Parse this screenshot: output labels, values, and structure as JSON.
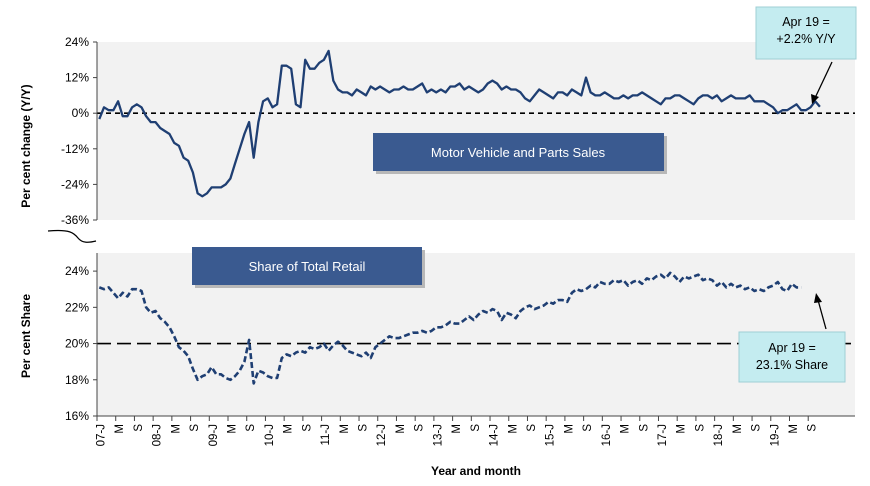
{
  "chart_data": [
    {
      "type": "line",
      "title": "Motor Vehicle and Parts Sales",
      "ylabel": "Per cent change (Y/Y)",
      "ylim": [
        -36,
        24
      ],
      "yticks": [
        "24%",
        "12%",
        "0%",
        "-12%",
        "-24%",
        "-36%"
      ],
      "ytick_values": [
        24,
        12,
        0,
        -12,
        -24,
        -36
      ],
      "reference_line": 0,
      "series": [
        {
          "values": [
            -2,
            2,
            1,
            1,
            4,
            -1,
            -1,
            2,
            3,
            2,
            -1,
            -3,
            -3,
            -5,
            -6,
            -7,
            -10,
            -11,
            -15,
            -16,
            -20,
            -27,
            -28,
            -27,
            -25,
            -25,
            -25,
            -24,
            -22,
            -17,
            -12,
            -7,
            -3,
            -15,
            -3,
            4,
            5,
            2,
            3,
            16,
            16,
            15,
            3,
            2,
            18,
            15,
            15,
            17,
            18,
            21,
            11,
            8,
            7,
            7,
            6,
            8,
            7,
            6,
            9,
            8,
            9,
            8,
            7,
            8,
            8,
            9,
            8,
            8,
            9,
            10,
            7,
            8,
            7,
            8,
            7,
            9,
            9,
            10,
            8,
            9,
            8,
            7,
            8,
            10,
            11,
            10,
            8,
            9,
            8,
            8,
            7,
            5,
            4,
            6,
            8,
            7,
            6,
            5,
            7,
            7,
            6,
            8,
            7,
            6,
            12,
            7,
            6,
            6,
            7,
            6,
            5,
            5,
            6,
            5,
            6,
            6,
            7,
            6,
            5,
            4,
            3,
            5,
            5,
            6,
            6,
            5,
            4,
            3,
            5,
            6,
            6,
            5,
            6,
            4,
            5,
            6,
            5,
            5,
            5,
            6,
            4,
            4,
            4,
            3,
            2,
            0,
            1,
            1,
            2,
            3,
            1,
            1,
            2,
            4,
            2.2
          ]
        }
      ],
      "annotation": "Apr 19 =\n+2.2% Y/Y"
    },
    {
      "type": "line",
      "title": "Share of Total Retail",
      "ylabel": "Per cent Share",
      "ylim": [
        16,
        25
      ],
      "yticks": [
        "24%",
        "22%",
        "20%",
        "18%",
        "16%"
      ],
      "ytick_values": [
        24,
        22,
        20,
        18,
        16
      ],
      "reference_line": 20,
      "series": [
        {
          "values": [
            23.1,
            23.0,
            23.1,
            22.8,
            22.5,
            22.8,
            22.6,
            23.0,
            23.0,
            22.9,
            22.0,
            21.7,
            21.8,
            21.4,
            21.2,
            20.9,
            20.4,
            19.8,
            19.6,
            19.3,
            18.6,
            18.0,
            18.2,
            18.3,
            18.7,
            18.3,
            18.3,
            18.1,
            18.0,
            18.2,
            18.5,
            19.0,
            20.2,
            17.8,
            18.5,
            18.4,
            18.2,
            18.1,
            18.1,
            19.2,
            19.4,
            19.3,
            19.5,
            19.6,
            19.5,
            19.8,
            19.7,
            19.8,
            20.0,
            19.6,
            19.9,
            20.1,
            19.9,
            19.6,
            19.5,
            19.4,
            19.3,
            19.5,
            19.2,
            19.8,
            20.0,
            20.2,
            20.4,
            20.3,
            20.3,
            20.4,
            20.5,
            20.6,
            20.6,
            20.7,
            20.6,
            20.7,
            20.9,
            20.9,
            21.0,
            21.2,
            21.1,
            21.1,
            21.3,
            21.5,
            21.3,
            21.6,
            21.8,
            21.7,
            21.9,
            21.8,
            21.3,
            21.7,
            21.6,
            21.4,
            21.8,
            22.0,
            22.1,
            21.9,
            22.0,
            22.1,
            22.3,
            22.2,
            22.4,
            22.4,
            22.3,
            22.8,
            23.0,
            22.9,
            23.0,
            23.2,
            23.1,
            23.4,
            23.3,
            23.3,
            23.5,
            23.4,
            23.5,
            23.2,
            23.4,
            23.5,
            23.3,
            23.6,
            23.5,
            23.7,
            23.8,
            23.6,
            23.9,
            23.7,
            23.4,
            23.7,
            23.6,
            23.7,
            23.8,
            23.5,
            23.6,
            23.5,
            23.2,
            23.4,
            23.1,
            23.3,
            23.1,
            23.2,
            23.0,
            23.1,
            22.9,
            23.0,
            22.9,
            23.1,
            23.2,
            23.4,
            23.0,
            22.9,
            23.3,
            23.1,
            23.1
          ]
        }
      ],
      "annotation": "Apr 19 =\n23.1% Share"
    }
  ],
  "x_axis": {
    "title": "Year and month",
    "tick_labels": [
      "07-J",
      "M",
      "S",
      "08-J",
      "M",
      "S",
      "09-J",
      "M",
      "S",
      "10-J",
      "M",
      "S",
      "11-J",
      "M",
      "S",
      "12-J",
      "M",
      "S",
      "13-J",
      "M",
      "S",
      "14-J",
      "M",
      "S",
      "15-J",
      "M",
      "S",
      "16-J",
      "M",
      "S",
      "17-J",
      "M",
      "S",
      "18-J",
      "M",
      "S",
      "19-J",
      "M",
      "S"
    ]
  }
}
